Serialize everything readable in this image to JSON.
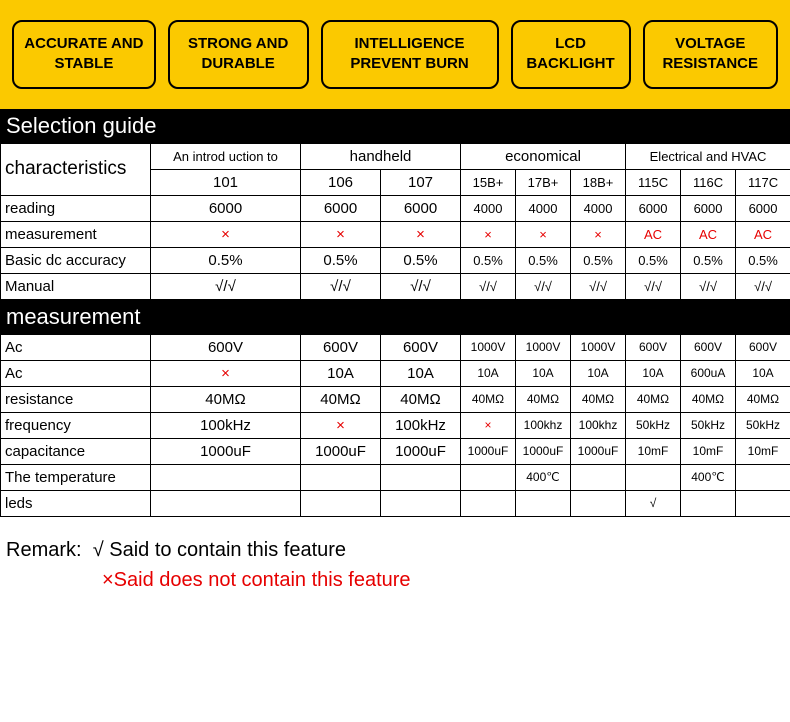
{
  "feature_strip": {
    "background": "#fbc900",
    "border_color": "#000000",
    "boxes": [
      "ACCURATE AND STABLE",
      "STRONG AND DURABLE",
      "INTELLIGENCE PREVENT BURN",
      "LCD BACKLIGHT",
      "VOLTAGE RESISTANCE"
    ]
  },
  "sections": {
    "selection_guide": "Selection guide",
    "measurement": "measurement"
  },
  "group_headers": {
    "characteristics": "characteristics",
    "intro": "An introd uction to",
    "handheld": "handheld",
    "economical": "economical",
    "hvac": "Electrical and HVAC"
  },
  "models": [
    "101",
    "106",
    "107",
    "15B+",
    "17B+",
    "18B+",
    "115C",
    "116C",
    "117C"
  ],
  "rows1": [
    {
      "label": "reading",
      "v": [
        "6000",
        "6000",
        "6000",
        "4000",
        "4000",
        "4000",
        "6000",
        "6000",
        "6000"
      ]
    },
    {
      "label": "measurement",
      "v": [
        "×",
        "×",
        "×",
        "×",
        "×",
        "×",
        "AC",
        "AC",
        "AC"
      ],
      "red": true
    },
    {
      "label": "Basic dc accuracy",
      "v": [
        "0.5%",
        "0.5%",
        "0.5%",
        "0.5%",
        "0.5%",
        "0.5%",
        "0.5%",
        "0.5%",
        "0.5%"
      ]
    },
    {
      "label": "Manual",
      "v": [
        "√/√",
        "√/√",
        "√/√",
        "√/√",
        "√/√",
        "√/√",
        "√/√",
        "√/√",
        "√/√"
      ]
    }
  ],
  "rows2": [
    {
      "label": "Ac",
      "v": [
        "600V",
        "600V",
        "600V",
        "1000V",
        "1000V",
        "1000V",
        "600V",
        "600V",
        "600V"
      ]
    },
    {
      "label": "Ac",
      "v": [
        "×",
        "10A",
        "10A",
        "10A",
        "10A",
        "10A",
        "10A",
        "600uA",
        "10A"
      ],
      "redidx": [
        0
      ]
    },
    {
      "label": "resistance",
      "v": [
        "40MΩ",
        "40MΩ",
        "40MΩ",
        "40MΩ",
        "40MΩ",
        "40MΩ",
        "40MΩ",
        "40MΩ",
        "40MΩ"
      ]
    },
    {
      "label": "frequency",
      "v": [
        "100kHz",
        "×",
        "100kHz",
        "×",
        "100khz",
        "100khz",
        "50kHz",
        "50kHz",
        "50kHz"
      ],
      "redidx": [
        1,
        3
      ]
    },
    {
      "label": "capacitance",
      "v": [
        "1000uF",
        "1000uF",
        "1000uF",
        "1000uF",
        "1000uF",
        "1000uF",
        "10mF",
        "10mF",
        "10mF"
      ]
    },
    {
      "label": "The temperature",
      "v": [
        "",
        "",
        "",
        "",
        "400℃",
        "",
        "",
        "400℃",
        ""
      ]
    },
    {
      "label": "leds",
      "v": [
        "",
        "",
        "",
        "",
        "",
        "",
        "√",
        "",
        ""
      ]
    }
  ],
  "remark": {
    "label": "Remark:",
    "yes": "√ Said to contain this feature",
    "no": "×Said does not contain this feature"
  },
  "colors": {
    "x_red": "#e60000",
    "header_bg": "#000000",
    "header_fg": "#ffffff"
  }
}
